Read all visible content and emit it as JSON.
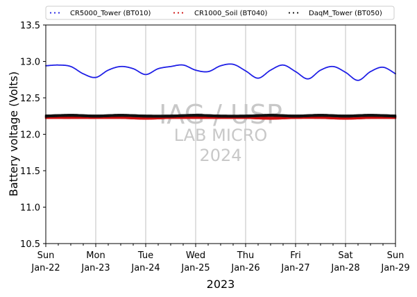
{
  "chart_data": {
    "type": "scatter",
    "xlabel": "2023",
    "ylabel": "Battery voltage (Volts)",
    "ylim": [
      10.5,
      13.5
    ],
    "xlim": [
      "2023-01-22",
      "2023-01-29"
    ],
    "y_ticks": [
      "10.5",
      "11.0",
      "11.5",
      "12.0",
      "12.5",
      "13.0",
      "13.5"
    ],
    "x_ticks": [
      {
        "day": "Sun",
        "date": "Jan-22"
      },
      {
        "day": "Mon",
        "date": "Jan-23"
      },
      {
        "day": "Tue",
        "date": "Jan-24"
      },
      {
        "day": "Wed",
        "date": "Jan-25"
      },
      {
        "day": "Thu",
        "date": "Jan-26"
      },
      {
        "day": "Fri",
        "date": "Jan-27"
      },
      {
        "day": "Sat",
        "date": "Jan-28"
      },
      {
        "day": "Sun",
        "date": "Jan-29"
      }
    ],
    "grid": "vertical",
    "legend_placement": "top",
    "watermark": [
      "IAG / USP",
      "LAB MICRO",
      "2024"
    ],
    "series": [
      {
        "name": "CR5000_Tower (BT010)",
        "color": "#1f1fe6",
        "x": [
          "2023-01-22",
          "2023-01-22 06:00",
          "2023-01-22 12:00",
          "2023-01-22 18:00",
          "2023-01-23",
          "2023-01-23 06:00",
          "2023-01-23 12:00",
          "2023-01-23 18:00",
          "2023-01-24",
          "2023-01-24 06:00",
          "2023-01-24 12:00",
          "2023-01-24 18:00",
          "2023-01-25",
          "2023-01-25 06:00",
          "2023-01-25 12:00",
          "2023-01-25 18:00",
          "2023-01-26",
          "2023-01-26 06:00",
          "2023-01-26 12:00",
          "2023-01-26 18:00",
          "2023-01-27",
          "2023-01-27 06:00",
          "2023-01-27 12:00",
          "2023-01-27 18:00",
          "2023-01-28",
          "2023-01-28 06:00",
          "2023-01-28 12:00",
          "2023-01-28 18:00",
          "2023-01-29"
        ],
        "values": [
          12.94,
          12.95,
          12.93,
          12.83,
          12.78,
          12.88,
          12.93,
          12.9,
          12.82,
          12.9,
          12.93,
          12.95,
          12.88,
          12.86,
          12.94,
          12.96,
          12.87,
          12.77,
          12.88,
          12.95,
          12.86,
          12.76,
          12.88,
          12.93,
          12.85,
          12.74,
          12.86,
          12.92,
          12.83
        ]
      },
      {
        "name": "CR1000_Soil (BT040)",
        "color": "#d01010",
        "x": [
          "2023-01-22",
          "2023-01-22 12:00",
          "2023-01-23",
          "2023-01-23 12:00",
          "2023-01-24",
          "2023-01-24 12:00",
          "2023-01-25",
          "2023-01-25 12:00",
          "2023-01-26",
          "2023-01-26 12:00",
          "2023-01-27",
          "2023-01-27 12:00",
          "2023-01-28",
          "2023-01-28 12:00",
          "2023-01-29"
        ],
        "values": [
          12.23,
          12.23,
          12.23,
          12.23,
          12.22,
          12.23,
          12.23,
          12.23,
          12.23,
          12.22,
          12.23,
          12.23,
          12.22,
          12.23,
          12.23
        ]
      },
      {
        "name": "DaqM_Tower (BT050)",
        "color": "#111111",
        "x": [
          "2023-01-22",
          "2023-01-22 12:00",
          "2023-01-23",
          "2023-01-23 12:00",
          "2023-01-24",
          "2023-01-24 12:00",
          "2023-01-25",
          "2023-01-25 12:00",
          "2023-01-26",
          "2023-01-26 12:00",
          "2023-01-27",
          "2023-01-27 12:00",
          "2023-01-28",
          "2023-01-28 12:00",
          "2023-01-29"
        ],
        "values": [
          12.25,
          12.26,
          12.25,
          12.26,
          12.25,
          12.25,
          12.26,
          12.25,
          12.25,
          12.26,
          12.25,
          12.26,
          12.25,
          12.26,
          12.25
        ]
      }
    ]
  }
}
